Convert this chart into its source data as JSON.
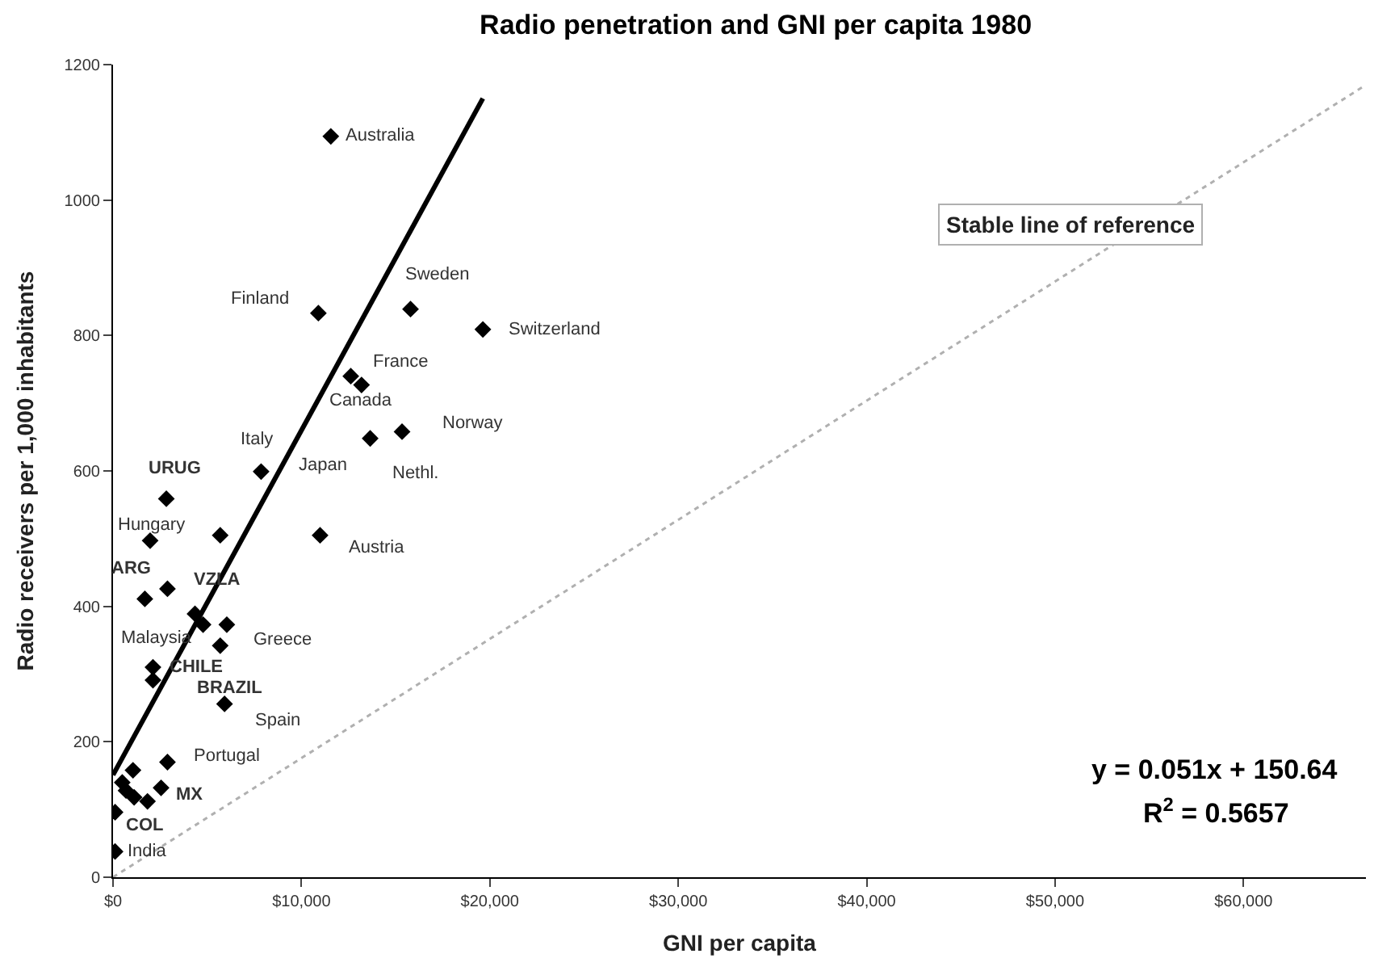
{
  "chart_data": {
    "type": "scatter",
    "title": "Radio penetration and GNI per capita 1980",
    "xlabel": "GNI per capita",
    "ylabel": "Radio receivers per 1,000 inhabitants",
    "xlim": [
      0,
      66500
    ],
    "ylim": [
      0,
      1200
    ],
    "xticks": [
      {
        "value": 0,
        "label": "$0"
      },
      {
        "value": 10000,
        "label": "$10,000"
      },
      {
        "value": 20000,
        "label": "$20,000"
      },
      {
        "value": 30000,
        "label": "$30,000"
      },
      {
        "value": 40000,
        "label": "$40,000"
      },
      {
        "value": 50000,
        "label": "$50,000"
      },
      {
        "value": 60000,
        "label": "$60,000"
      }
    ],
    "yticks": [
      0,
      200,
      400,
      600,
      800,
      1000,
      1200
    ],
    "legend": false,
    "marker": "diamond",
    "series": [
      {
        "color": "#000000",
        "x": [
          11560,
          10900,
          15790,
          19630,
          12620,
          13190,
          15340,
          13650,
          7860,
          2830,
          1970,
          5690,
          10990,
          2890,
          1690,
          4350,
          4780,
          6040,
          5690,
          2120,
          2120,
          5920,
          2890,
          1060,
          490,
          690,
          1120,
          1830,
          2550,
          110,
          110
        ],
        "values": [
          1094,
          833,
          839,
          809,
          740,
          727,
          658,
          648,
          599,
          559,
          497,
          505,
          505,
          426,
          411,
          389,
          373,
          373,
          342,
          310,
          291,
          256,
          170,
          158,
          140,
          128,
          118,
          112,
          132,
          96,
          38
        ]
      },
      {
        "type": "line",
        "color": "#000000",
        "line_style": "solid",
        "marker": "none",
        "x": [
          0,
          19630
        ],
        "values": [
          151,
          1150
        ]
      },
      {
        "type": "line",
        "name": "Stable line of reference",
        "color": "#b0b0b0",
        "line_style": "dotted",
        "marker": "none",
        "x": [
          0,
          66500
        ],
        "values": [
          0,
          1170
        ]
      }
    ],
    "annotations": [
      {
        "text": "Australia",
        "x": 11560,
        "y": 1094
      },
      {
        "text": "Finland",
        "x": 10900,
        "y": 833
      },
      {
        "text": "Sweden",
        "x": 15790,
        "y": 839
      },
      {
        "text": "Switzerland",
        "x": 19630,
        "y": 809
      },
      {
        "text": "France",
        "x": 12620,
        "y": 740
      },
      {
        "text": "Canada",
        "x": 13190,
        "y": 727
      },
      {
        "text": "Norway",
        "x": 15340,
        "y": 658
      },
      {
        "text": "Nethl.",
        "x": 13650,
        "y": 648
      },
      {
        "text": "Italy",
        "x": 7860,
        "y": 599
      },
      {
        "text": "Japan",
        "x": 7860,
        "y": 599
      },
      {
        "text": "URUG",
        "x": 2830,
        "y": 559
      },
      {
        "text": "Hungary",
        "x": 1970,
        "y": 497
      },
      {
        "text": "Austria",
        "x": 10990,
        "y": 505
      },
      {
        "text": "ARG",
        "x": 1690,
        "y": 411
      },
      {
        "text": "VZLA",
        "x": 2890,
        "y": 426
      },
      {
        "text": "Malaysia",
        "x": 4350,
        "y": 389
      },
      {
        "text": "Greece",
        "x": 5690,
        "y": 342
      },
      {
        "text": "CHILE",
        "x": 2120,
        "y": 310
      },
      {
        "text": "BRAZIL",
        "x": 5920,
        "y": 256
      },
      {
        "text": "Spain",
        "x": 5920,
        "y": 256
      },
      {
        "text": "Portugal",
        "x": 2890,
        "y": 170
      },
      {
        "text": "MX",
        "x": 2550,
        "y": 132
      },
      {
        "text": "COL",
        "x": 110,
        "y": 96
      },
      {
        "text": "India",
        "x": 110,
        "y": 38
      },
      "y = 0.051x + 150.64",
      "R$^{2}$ = 0.5657"
    ]
  }
}
